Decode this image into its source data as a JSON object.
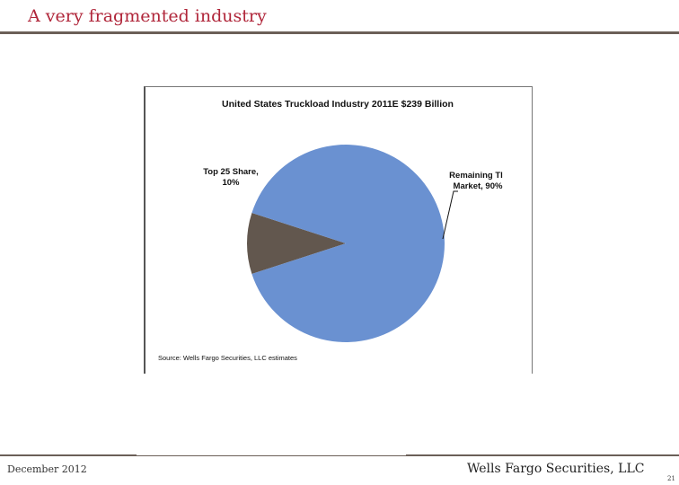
{
  "slide": {
    "title": "A very fragmented industry",
    "footer_date": "December 2012",
    "footer_company": "Wells Fargo Securities, LLC",
    "page_number": "21"
  },
  "colors": {
    "title": "#b0263a",
    "rule": "#6b5f58"
  },
  "chart_data": {
    "type": "pie",
    "title": "United States Truckload Industry 2011E $239 Billion",
    "slices": [
      {
        "label_line1": "Top 25 Share,",
        "label_line2": "10%",
        "value": 10,
        "color": "#62574e"
      },
      {
        "label_line1": "Remaining Tl",
        "label_line2": "Market, 90%",
        "value": 90,
        "color": "#6a91d1"
      }
    ],
    "source": "Source: Wells Fargo Securities, LLC estimates"
  }
}
